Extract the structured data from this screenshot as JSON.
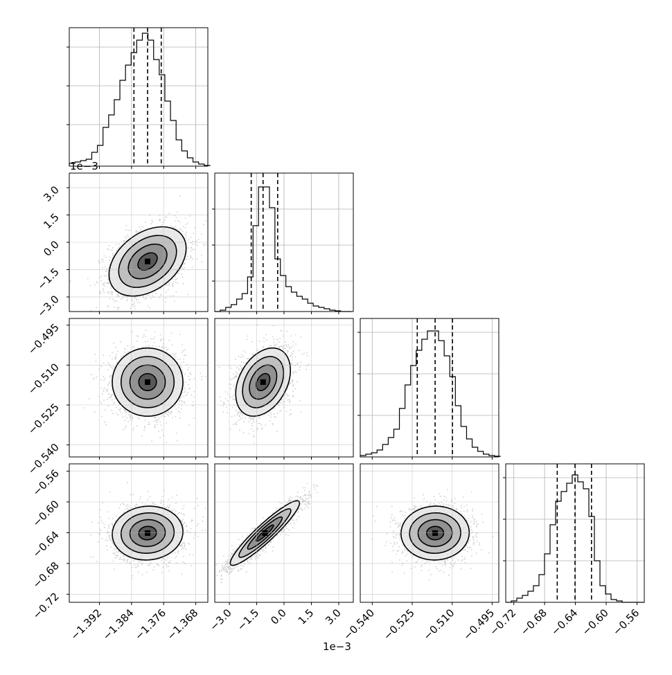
{
  "chart_data": {
    "type": "corner",
    "offset_labels": {
      "y_row1": "1e−3",
      "x_col1": "1e−3"
    },
    "grid": true,
    "params": [
      {
        "axis_range": [
          -1.3995,
          -1.365
        ],
        "ticks": [
          -1.392,
          -1.384,
          -1.376,
          -1.368
        ],
        "tick_labels": [
          "−1.392",
          "−1.384",
          "−1.376",
          "−1.368"
        ],
        "quantiles": [
          -1.3834,
          -1.38,
          -1.3766
        ],
        "hist": {
          "edges": [
            -1.3995,
            -1.3981,
            -1.3967,
            -1.3953,
            -1.3939,
            -1.3925,
            -1.3911,
            -1.3897,
            -1.3883,
            -1.3869,
            -1.3855,
            -1.3841,
            -1.3827,
            -1.3813,
            -1.3799,
            -1.3785,
            -1.3771,
            -1.3757,
            -1.3743,
            -1.3729,
            -1.3715,
            -1.3701,
            -1.3687,
            -1.3673,
            -1.3659,
            -1.3645
          ],
          "counts": [
            0.02,
            0.03,
            0.04,
            0.05,
            0.1,
            0.15,
            0.28,
            0.37,
            0.48,
            0.62,
            0.73,
            0.82,
            0.91,
            0.96,
            0.91,
            0.77,
            0.66,
            0.47,
            0.33,
            0.19,
            0.11,
            0.06,
            0.03,
            0.015,
            0.005
          ],
          "ytick_fracs": [
            0.3,
            0.58,
            0.86
          ]
        }
      },
      {
        "axis_range": [
          -3.8,
          3.8
        ],
        "ticks": [
          -3.0,
          -1.5,
          0.0,
          1.5,
          3.0
        ],
        "tick_labels": [
          "−3.0",
          "−1.5",
          "0.0",
          "1.5",
          "3.0"
        ],
        "quantiles": [
          -1.8,
          -1.15,
          -0.35
        ],
        "hist": {
          "edges": [
            -3.8,
            -3.5,
            -3.2,
            -2.9,
            -2.6,
            -2.3,
            -2.0,
            -1.7,
            -1.4,
            -1.1,
            -0.8,
            -0.5,
            -0.2,
            0.1,
            0.4,
            0.7,
            1.0,
            1.3,
            1.6,
            1.9,
            2.2,
            2.5,
            2.8,
            3.1,
            3.4,
            3.7
          ],
          "counts": [
            0.0,
            0.01,
            0.03,
            0.05,
            0.09,
            0.13,
            0.25,
            0.62,
            0.9,
            0.9,
            0.75,
            0.38,
            0.26,
            0.18,
            0.14,
            0.11,
            0.09,
            0.06,
            0.04,
            0.03,
            0.02,
            0.01,
            0.005,
            0.0,
            0.0
          ],
          "ytick_fracs": [
            0.22,
            0.48,
            0.74
          ]
        }
      },
      {
        "axis_range": [
          -0.5445,
          -0.4925
        ],
        "ticks": [
          -0.54,
          -0.525,
          -0.51,
          -0.495
        ],
        "tick_labels": [
          "−0.540",
          "−0.525",
          "−0.510",
          "−0.495"
        ],
        "quantiles": [
          -0.5231,
          -0.5164,
          -0.5099
        ],
        "hist": {
          "edges": [
            -0.5445,
            -0.5424,
            -0.5403,
            -0.5382,
            -0.5361,
            -0.534,
            -0.5319,
            -0.5298,
            -0.5277,
            -0.5256,
            -0.5235,
            -0.5214,
            -0.5193,
            -0.5172,
            -0.5151,
            -0.513,
            -0.5109,
            -0.5088,
            -0.5067,
            -0.5046,
            -0.5025,
            -0.5004,
            -0.4983,
            -0.4962,
            -0.4941,
            -0.492
          ],
          "counts": [
            0.01,
            0.02,
            0.03,
            0.05,
            0.09,
            0.14,
            0.2,
            0.35,
            0.52,
            0.66,
            0.77,
            0.85,
            0.91,
            0.91,
            0.84,
            0.73,
            0.58,
            0.37,
            0.22,
            0.13,
            0.07,
            0.04,
            0.02,
            0.01,
            0.005
          ],
          "ytick_fracs": [
            0.3,
            0.6,
            0.9
          ]
        }
      },
      {
        "axis_range": [
          -0.7305,
          -0.5505
        ],
        "ticks": [
          -0.72,
          -0.68,
          -0.64,
          -0.6,
          -0.56
        ],
        "tick_labels": [
          "−0.72",
          "−0.68",
          "−0.64",
          "−0.60",
          "−0.56"
        ],
        "quantiles": [
          -0.6636,
          -0.6405,
          -0.6191
        ],
        "hist": {
          "edges": [
            -0.7305,
            -0.7233,
            -0.7161,
            -0.7089,
            -0.7017,
            -0.6945,
            -0.6873,
            -0.6801,
            -0.6729,
            -0.6657,
            -0.6585,
            -0.6513,
            -0.6441,
            -0.6369,
            -0.6297,
            -0.6225,
            -0.6153,
            -0.6081,
            -0.6009,
            -0.5937,
            -0.5865,
            -0.5793,
            -0.5721,
            -0.5649,
            -0.5577,
            -0.5505
          ],
          "counts": [
            0.0,
            0.01,
            0.03,
            0.05,
            0.08,
            0.12,
            0.2,
            0.35,
            0.56,
            0.73,
            0.8,
            0.86,
            0.92,
            0.87,
            0.82,
            0.62,
            0.3,
            0.12,
            0.06,
            0.02,
            0.01,
            0.0,
            0.0,
            0.0,
            0.0
          ],
          "ytick_fracs": [
            0.3,
            0.6,
            0.9
          ]
        }
      }
    ],
    "pairs": [
      {
        "row": 1,
        "col": 0,
        "mean": [
          -1.38,
          -1.05
        ],
        "sd": [
          0.0048,
          0.95
        ],
        "rho": 0.38
      },
      {
        "row": 2,
        "col": 0,
        "mean": [
          -1.38,
          -0.5164
        ],
        "sd": [
          0.0044,
          0.0064
        ],
        "rho": 0.0
      },
      {
        "row": 2,
        "col": 1,
        "mean": [
          -1.15,
          -0.5164
        ],
        "sd": [
          0.75,
          0.0064
        ],
        "rho": 0.35
      },
      {
        "row": 3,
        "col": 0,
        "mean": [
          -1.38,
          -0.6405
        ],
        "sd": [
          0.0044,
          0.0175
        ],
        "rho": 0.05
      },
      {
        "row": 3,
        "col": 1,
        "mean": [
          -1.05,
          -0.6405
        ],
        "sd": [
          0.95,
          0.021
        ],
        "rho": 0.93
      },
      {
        "row": 3,
        "col": 2,
        "mean": [
          -0.5164,
          -0.6405
        ],
        "sd": [
          0.0064,
          0.0175
        ],
        "rho": 0.02
      }
    ]
  }
}
